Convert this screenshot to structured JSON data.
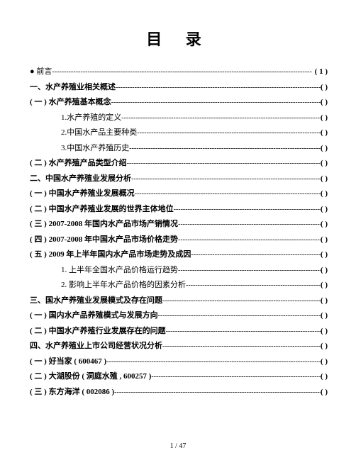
{
  "title": "目 录",
  "dots": "--------------------------------------------------------------------------------------------------------------",
  "footer": "1 / 47",
  "entries": [
    {
      "text": "● 前言",
      "page": "( 1 )",
      "bold": false,
      "indent": 0
    },
    {
      "text": "一、水产养殖业相关概述",
      "page": "( )",
      "bold": true,
      "indent": 0
    },
    {
      "text": "( 一 ) 水产养殖基本概念",
      "page": "( )",
      "bold": true,
      "indent": 1
    },
    {
      "text": "1.水产养殖的定义",
      "page": "( )",
      "bold": false,
      "indent": 2
    },
    {
      "text": "2.中国水产品主要种类",
      "page": "( )",
      "bold": false,
      "indent": 2
    },
    {
      "text": "3.中国水产养殖历史",
      "page": "( )",
      "bold": false,
      "indent": 2
    },
    {
      "text": "( 二 ) 水产养殖产品类型介绍",
      "page": "( )",
      "bold": true,
      "indent": 1
    },
    {
      "text": "二、中国水产养殖业发展分析",
      "page": "( )",
      "bold": true,
      "indent": 0
    },
    {
      "text": "( 一 ) 中国水产养殖业发展概况",
      "page": "( )",
      "bold": true,
      "indent": 1
    },
    {
      "text": "( 二 ) 中国水产养殖业发展的世界主体地位",
      "page": "( )",
      "bold": true,
      "indent": 1
    },
    {
      "text": "( 三 ) 2007-2008 年国内水产品市场产销情况",
      "page": "( )",
      "bold": true,
      "indent": 1
    },
    {
      "text": "( 四 ) 2007-2008 年中国水产品市场价格走势",
      "page": "( )",
      "bold": true,
      "indent": 1
    },
    {
      "text": "( 五 ) 2009 年上半年国内水产品市场走势及成因",
      "page": "( )",
      "bold": true,
      "indent": 1
    },
    {
      "text": "1. 上半年全国水产品价格运行趋势",
      "page": "( )",
      "bold": false,
      "indent": 2
    },
    {
      "text": "2. 影响上半年水产品价格的因素分析",
      "page": "( )",
      "bold": false,
      "indent": 2
    },
    {
      "text": "三、国水产养殖业发展模式及存在问题",
      "page": "( )",
      "bold": true,
      "indent": 0
    },
    {
      "text": "( 一 ) 国内水产品养殖模式与发展方向",
      "page": "( )",
      "bold": true,
      "indent": 1
    },
    {
      "text": "( 二 ) 中国水产养殖行业发展存在的问题",
      "page": "( )",
      "bold": true,
      "indent": 1
    },
    {
      "text": "四、水产养殖业上市公司经营状况分析",
      "page": "( )",
      "bold": true,
      "indent": 0
    },
    {
      "text": "( 一 ) 好当家 ( 600467 )",
      "page": "( )",
      "bold": true,
      "indent": 1
    },
    {
      "text": "( 二 ) 大湖股份 ( 洞庭水殖 , 600257 )",
      "page": "( )",
      "bold": true,
      "indent": 1
    },
    {
      "text": "( 三 ) 东方海洋 ( 002086 )",
      "page": "( )",
      "bold": true,
      "indent": 1
    }
  ]
}
